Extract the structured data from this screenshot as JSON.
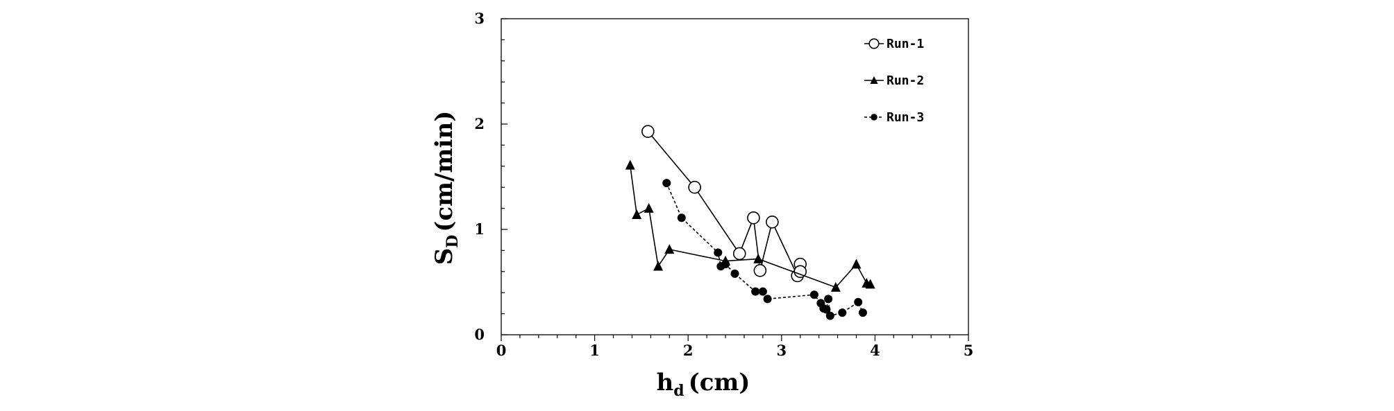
{
  "chart_data": {
    "type": "scatter",
    "title": "",
    "xlabel": "h",
    "xlabel_sub": "d",
    "xlabel_unit": "(cm)",
    "ylabel": "S",
    "ylabel_sub": "D",
    "ylabel_unit": "(cm/min)",
    "xlim": [
      0,
      5
    ],
    "ylim": [
      0,
      3
    ],
    "x_ticks": [
      0,
      1,
      2,
      3,
      4,
      5
    ],
    "y_ticks": [
      0,
      1,
      2,
      3
    ],
    "x_tick_labels": [
      "0",
      "1",
      "2",
      "3",
      "4",
      "5"
    ],
    "y_tick_labels": [
      "0",
      "1",
      "2",
      "3"
    ],
    "grid": false,
    "legend_position": "top-right",
    "series": [
      {
        "name": "Run-1",
        "marker": "open-circle",
        "line": "solid",
        "points": [
          [
            1.57,
            1.93
          ],
          [
            2.07,
            1.4
          ],
          [
            2.55,
            0.77
          ],
          [
            2.7,
            1.11
          ],
          [
            2.77,
            0.61
          ],
          [
            2.9,
            1.07
          ],
          [
            3.17,
            0.56
          ],
          [
            3.2,
            0.67
          ],
          [
            3.2,
            0.6
          ]
        ]
      },
      {
        "name": "Run-2",
        "marker": "filled-triangle",
        "line": "solid",
        "points": [
          [
            1.38,
            1.61
          ],
          [
            1.45,
            1.14
          ],
          [
            1.58,
            1.2
          ],
          [
            1.68,
            0.65
          ],
          [
            1.8,
            0.81
          ],
          [
            2.4,
            0.7
          ],
          [
            2.75,
            0.72
          ],
          [
            3.58,
            0.45
          ],
          [
            3.8,
            0.67
          ],
          [
            3.91,
            0.49
          ],
          [
            3.95,
            0.48
          ]
        ]
      },
      {
        "name": "Run-3",
        "marker": "filled-circle",
        "line": "dashed",
        "points": [
          [
            1.77,
            1.44
          ],
          [
            1.93,
            1.11
          ],
          [
            2.32,
            0.78
          ],
          [
            2.35,
            0.65
          ],
          [
            2.4,
            0.67
          ],
          [
            2.5,
            0.58
          ],
          [
            2.72,
            0.41
          ],
          [
            2.8,
            0.41
          ],
          [
            2.85,
            0.34
          ],
          [
            3.35,
            0.38
          ],
          [
            3.42,
            0.3
          ],
          [
            3.45,
            0.25
          ],
          [
            3.48,
            0.24
          ],
          [
            3.5,
            0.34
          ],
          [
            3.52,
            0.18
          ],
          [
            3.65,
            0.21
          ],
          [
            3.82,
            0.31
          ],
          [
            3.87,
            0.21
          ]
        ]
      }
    ]
  }
}
